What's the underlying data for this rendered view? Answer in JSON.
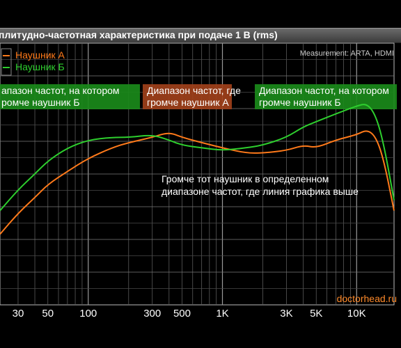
{
  "chart_data": {
    "type": "line",
    "title": "плитудно-частотная характеристика при подаче 1 В (rms)",
    "measurement": "Measurement: ARTA, HDMI",
    "watermark": "doctorhead.ru",
    "x_scale": "log",
    "xlim": [
      22,
      19000
    ],
    "x_ticks": [
      {
        "value": 30,
        "label": "30"
      },
      {
        "value": 50,
        "label": "50"
      },
      {
        "value": 100,
        "label": "100"
      },
      {
        "value": 300,
        "label": "300"
      },
      {
        "value": 500,
        "label": "500"
      },
      {
        "value": 1000,
        "label": "1K"
      },
      {
        "value": 3000,
        "label": "3K"
      },
      {
        "value": 5000,
        "label": "5K"
      },
      {
        "value": 10000,
        "label": "10K"
      }
    ],
    "ylim": [
      0,
      100
    ],
    "grid": true,
    "legend_position": "top-left",
    "colors": {
      "a": "#ff7a1a",
      "b": "#2ecf2e"
    },
    "series": [
      {
        "name": "Наушник А",
        "color": "#ff7a1a",
        "x": [
          22,
          30,
          40,
          50,
          70,
          100,
          150,
          200,
          300,
          400,
          500,
          700,
          1000,
          1500,
          2000,
          3000,
          4000,
          5000,
          7000,
          10000,
          12000,
          14000,
          16000,
          19000
        ],
        "y": [
          27,
          35,
          41,
          46,
          51,
          56,
          60,
          62,
          64,
          66,
          64,
          62,
          60,
          58,
          58,
          59,
          61,
          60,
          63,
          65,
          67,
          64,
          55,
          36
        ]
      },
      {
        "name": "Наушник Б",
        "color": "#2ecf2e",
        "x": [
          22,
          30,
          40,
          50,
          70,
          100,
          150,
          200,
          300,
          400,
          500,
          700,
          1000,
          1500,
          2000,
          3000,
          4000,
          5000,
          7000,
          10000,
          12000,
          14000,
          16000,
          19000
        ],
        "y": [
          36,
          44,
          50,
          55,
          60,
          63,
          64,
          64,
          65,
          63,
          61,
          60,
          59,
          60,
          61,
          64,
          68,
          70,
          73,
          76,
          77,
          72,
          61,
          40
        ]
      }
    ],
    "legend_entries": [
      "Наушник А",
      "Наушник Б"
    ],
    "regions": [
      {
        "text_line1": "апазон частот, на котором",
        "text_line2": "ромче наушник Б",
        "color": "#1a8a1a"
      },
      {
        "text_line1": "Диапазон частот, где",
        "text_line2": "громче наушник А",
        "color": "#a0401a"
      },
      {
        "text_line1": "Диапазон частот, на котором",
        "text_line2": "громче наушник Б",
        "color": "#1a8a1a"
      }
    ],
    "annotation": {
      "line1": "Громче тот наушник в определенном",
      "line2": "диапазоне частот, где линия графика выше"
    }
  }
}
